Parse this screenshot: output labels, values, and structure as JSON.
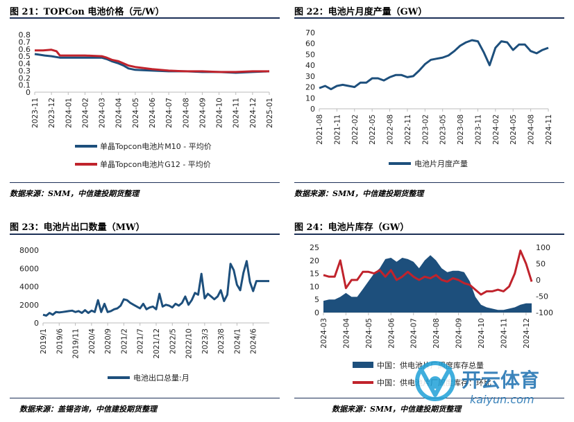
{
  "panels": {
    "p21": {
      "title": "图 21：TOPCon 电池价格（元/W）"
    },
    "p22": {
      "title": "图 22：电池片月度产量（GW）"
    },
    "p23": {
      "title": "图 23：电池片出口数量（MW）"
    },
    "p24": {
      "title": "图 24：电池片库存（GW）"
    }
  },
  "sources": {
    "s1": "数据来源：SMM，中信建投期货整理",
    "s2": "数据来源：SMM，中信建投期货整理",
    "s3": "数据来源：盖锡咨询，中信建投期货整理",
    "s4": "数据来源：SMM，中信建投期货整理"
  },
  "watermark": {
    "text": "开云体育",
    "url": "kaiyun.com"
  },
  "chart_data": [
    {
      "id": "p21",
      "type": "line",
      "title": "TOPCon 电池价格（元/W）",
      "x_ticks": [
        "2023-11",
        "2023-12",
        "2024-01",
        "2024-02",
        "2024-03",
        "2024-04",
        "2024-05",
        "2024-06",
        "2024-07",
        "2024-08",
        "2024-09",
        "2024-10",
        "2024-11",
        "2024-12",
        "2025-01"
      ],
      "y_ticks": [
        "0",
        "0.1",
        "0.2",
        "0.3",
        "0.4",
        "0.5",
        "0.6",
        "0.7",
        "0.8"
      ],
      "ylim": [
        0,
        0.8
      ],
      "series": [
        {
          "name": "单晶Topcon电池片M10 - 平均价",
          "color": "#1d4f7c",
          "x": [
            0,
            0.3,
            0.6,
            1.0,
            1.5,
            2,
            3,
            4,
            4.3,
            4.6,
            5,
            5.3,
            5.6,
            6,
            7,
            8,
            9,
            10,
            11,
            12,
            13,
            14
          ],
          "y": [
            0.53,
            0.52,
            0.51,
            0.5,
            0.48,
            0.48,
            0.48,
            0.48,
            0.46,
            0.43,
            0.4,
            0.37,
            0.33,
            0.31,
            0.3,
            0.29,
            0.29,
            0.28,
            0.28,
            0.27,
            0.28,
            0.29
          ]
        },
        {
          "name": "单晶Topcon电池片G12 - 平均价",
          "color": "#c0232c",
          "x": [
            0,
            0.5,
            1.0,
            1.3,
            1.5,
            2,
            3,
            4,
            4.3,
            4.6,
            5,
            5.3,
            5.6,
            6,
            7,
            8,
            9,
            10,
            11,
            12,
            13,
            14
          ],
          "y": [
            0.58,
            0.58,
            0.59,
            0.57,
            0.51,
            0.51,
            0.51,
            0.5,
            0.48,
            0.45,
            0.43,
            0.4,
            0.37,
            0.35,
            0.32,
            0.3,
            0.29,
            0.29,
            0.28,
            0.28,
            0.29,
            0.29
          ]
        }
      ]
    },
    {
      "id": "p22",
      "type": "line",
      "title": "电池片月度产量（GW）",
      "x_ticks": [
        "2021-08",
        "2021-11",
        "2022-02",
        "2022-05",
        "2022-08",
        "2022-11",
        "2023-02",
        "2023-05",
        "2023-08",
        "2023-11",
        "2024-02",
        "2024-05",
        "2024-08",
        "2024-11"
      ],
      "y_ticks": [
        "0",
        "10",
        "20",
        "30",
        "40",
        "50",
        "60",
        "70"
      ],
      "ylim": [
        0,
        70
      ],
      "series": [
        {
          "name": "电池片月度产量",
          "color": "#1d4f7c",
          "x": [
            0,
            1,
            2,
            3,
            4,
            5,
            6,
            7,
            8,
            9,
            10,
            11,
            12,
            13,
            14,
            15,
            16,
            17,
            18,
            19,
            20,
            21,
            22,
            23,
            24,
            25,
            26,
            27,
            28,
            29,
            30,
            31,
            32,
            33,
            34,
            35,
            36,
            37,
            38,
            39
          ],
          "y": [
            19,
            21,
            18,
            21,
            22,
            21,
            20,
            24,
            24,
            28,
            28,
            26,
            29,
            31,
            31,
            29,
            30,
            35,
            41,
            45,
            46,
            47,
            49,
            53,
            58,
            61,
            63,
            62,
            52,
            40,
            56,
            62,
            61,
            54,
            59,
            59,
            53,
            51,
            54,
            56
          ]
        }
      ]
    },
    {
      "id": "p23",
      "type": "line",
      "title": "电池片出口数量（MW）",
      "x_ticks": [
        "2019/1",
        "2019/6",
        "2019/11",
        "2020/4",
        "2020/9",
        "2021/2",
        "2021/7",
        "2021/12",
        "2022/5",
        "2022/10",
        "2023/3",
        "2023/8",
        "2024/1",
        "2024/6"
      ],
      "y_ticks": [
        "0",
        "2000",
        "4000",
        "6000",
        "8000"
      ],
      "ylim": [
        0,
        8000
      ],
      "series": [
        {
          "name": "电池出口总量:月",
          "color": "#1d4f7c",
          "x": [
            0,
            1,
            2,
            3,
            4,
            5,
            6,
            7,
            8,
            9,
            10,
            11,
            12,
            13,
            14,
            15,
            16,
            17,
            18,
            19,
            20,
            21,
            22,
            23,
            24,
            25,
            26,
            27,
            28,
            29,
            30,
            31,
            32,
            33,
            34,
            35,
            36,
            37,
            38,
            39,
            40,
            41,
            42,
            43,
            44,
            45,
            46,
            47,
            48,
            49,
            50,
            51,
            52,
            53,
            54,
            55,
            56,
            57,
            58,
            59,
            60,
            61,
            62,
            63,
            64,
            65,
            66,
            67,
            68,
            69,
            70
          ],
          "y": [
            900,
            800,
            1100,
            900,
            1200,
            1150,
            1200,
            1250,
            1300,
            1350,
            1200,
            1300,
            1100,
            1400,
            1100,
            1350,
            1200,
            2500,
            1200,
            2100,
            1200,
            1300,
            1500,
            1600,
            1900,
            2600,
            2500,
            2200,
            2000,
            1800,
            1600,
            2100,
            1500,
            1700,
            1800,
            1500,
            3200,
            1800,
            2000,
            1900,
            1700,
            2100,
            1900,
            2200,
            2900,
            2000,
            2500,
            3300,
            3100,
            5400,
            2700,
            3200,
            2900,
            2600,
            2900,
            3600,
            2400,
            3100,
            6500,
            5800,
            4200,
            3600,
            5500,
            6800,
            4500,
            3500,
            4600,
            4600,
            4600,
            4600,
            4600
          ]
        }
      ]
    },
    {
      "id": "p24",
      "type": "area",
      "title": "电池片库存（GW）",
      "x_ticks": [
        "2024-03",
        "2024-04",
        "2024-05",
        "2024-06",
        "2024-07",
        "2024-08",
        "2024-09",
        "2024-10",
        "2024-11",
        "2024-12"
      ],
      "y_ticks_left": [
        "0",
        "5",
        "10",
        "15",
        "20",
        "25"
      ],
      "y_ticks_right": [
        "-100",
        "-50",
        "0",
        "50",
        "100"
      ],
      "ylim_left": [
        0,
        25
      ],
      "ylim_right": [
        -100,
        100
      ],
      "series": [
        {
          "name": "中国：供电池片厂周度库存总量",
          "color": "#1d4f7c",
          "axis": "left",
          "kind": "area",
          "x": [
            0,
            0.25,
            0.5,
            0.75,
            1,
            1.25,
            1.5,
            1.75,
            2,
            2.25,
            2.5,
            2.75,
            3,
            3.25,
            3.5,
            3.75,
            4,
            4.25,
            4.5,
            4.75,
            5,
            5.25,
            5.5,
            5.75,
            6,
            6.25,
            6.5,
            6.75,
            7,
            7.25,
            7.5,
            7.75,
            8,
            8.25,
            8.5,
            8.75,
            9,
            9.25
          ],
          "y": [
            4.5,
            5,
            5,
            6,
            7.5,
            6,
            6,
            9,
            12,
            15,
            17,
            20.5,
            21,
            19.5,
            21,
            20.5,
            19.5,
            17,
            20,
            22,
            20,
            17,
            15.5,
            16,
            16,
            15.5,
            12,
            6,
            3,
            2,
            1.5,
            1,
            1,
            1.5,
            2,
            3,
            3.5,
            3.5
          ]
        },
        {
          "name": "中国：供电池片厂周度库存：环比",
          "color": "#c0232c",
          "axis": "right",
          "kind": "line",
          "x": [
            0,
            0.25,
            0.5,
            0.75,
            1,
            1.25,
            1.5,
            1.75,
            2,
            2.25,
            2.5,
            2.75,
            3,
            3.25,
            3.5,
            3.75,
            4,
            4.25,
            4.5,
            4.75,
            5,
            5.25,
            5.5,
            5.75,
            6,
            6.25,
            6.5,
            6.75,
            7,
            7.25,
            7.5,
            7.75,
            8,
            8.25,
            8.5,
            8.75,
            9,
            9.25
          ],
          "y": [
            15,
            10,
            10,
            60,
            -25,
            0,
            0,
            25,
            25,
            20,
            30,
            10,
            30,
            0,
            10,
            25,
            10,
            0,
            10,
            5,
            15,
            0,
            -5,
            5,
            0,
            -10,
            -15,
            -30,
            -45,
            -35,
            -35,
            -30,
            -35,
            -20,
            20,
            90,
            50,
            -5
          ]
        }
      ]
    }
  ]
}
